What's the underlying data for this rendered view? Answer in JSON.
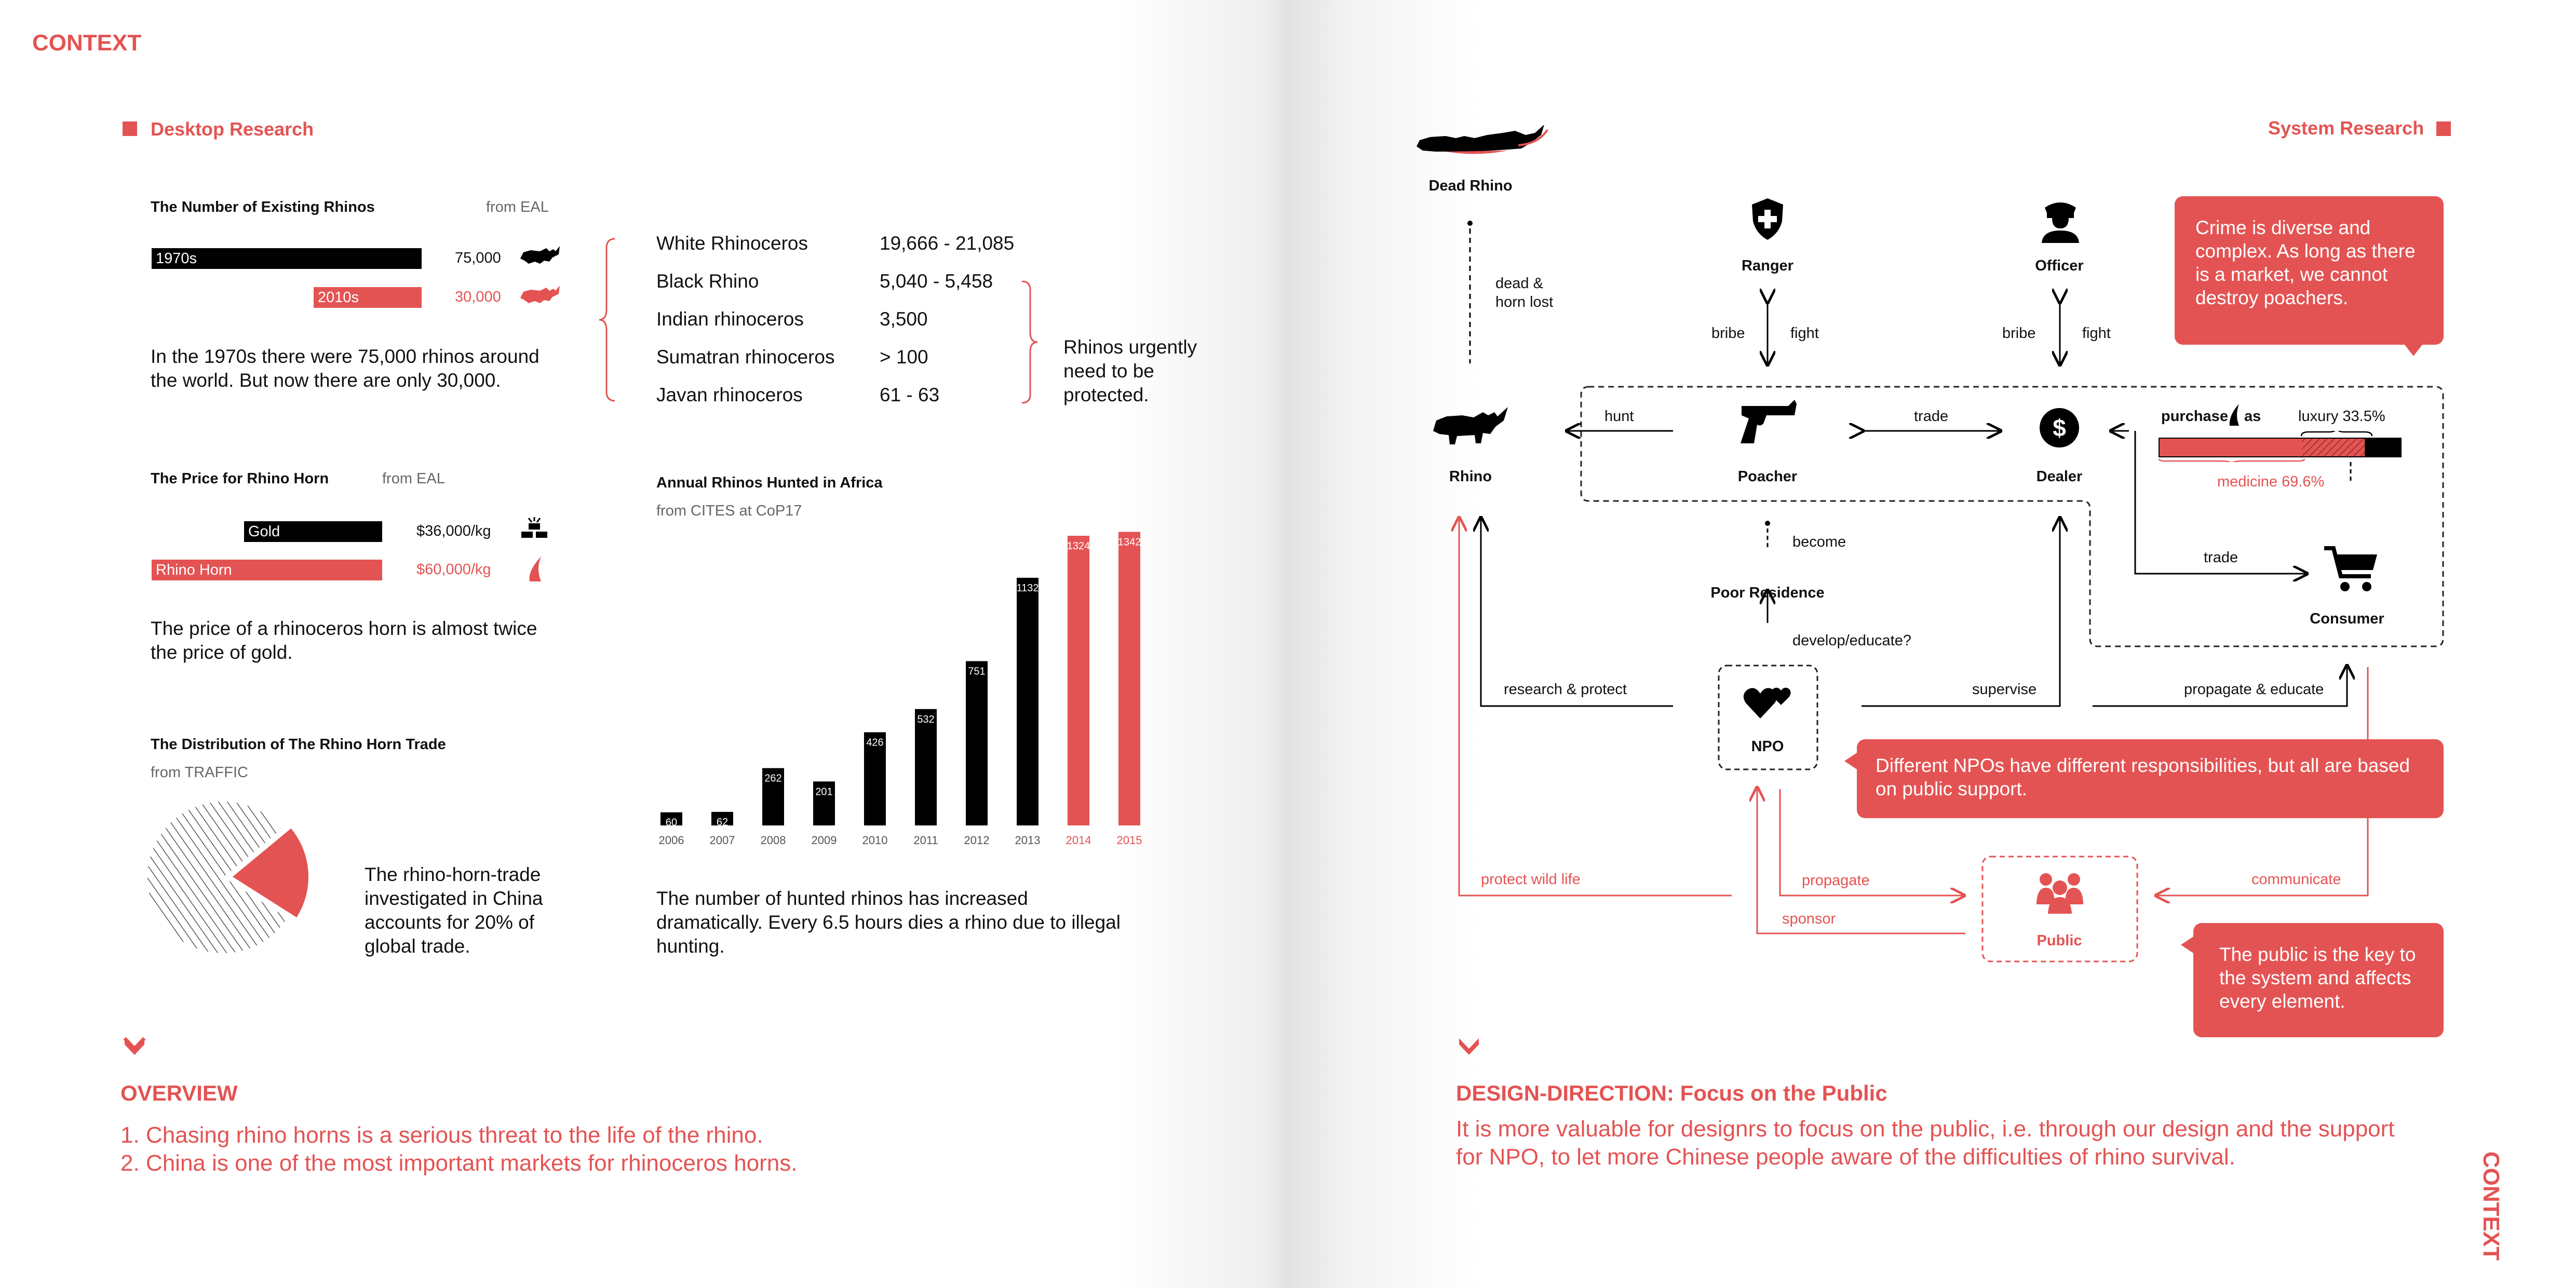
{
  "header": {
    "context_left": "CONTEXT",
    "context_right": "CONTEXT"
  },
  "left": {
    "section_title": "Desktop Research",
    "rhinos": {
      "title": "The Number of Existing Rhinos",
      "source": "from EAL",
      "bars": [
        {
          "label": "1970s",
          "value": "75,000",
          "fraction": 1.0
        },
        {
          "label": "2010s",
          "value": "30,000",
          "fraction": 0.4
        }
      ],
      "text": "In the 1970s there were 75,000 rhinos around the world. But now there are only 30,000."
    },
    "species": {
      "rows": [
        {
          "name": "White Rhinoceros",
          "value": "19,666 - 21,085"
        },
        {
          "name": "Black Rhino",
          "value": "5,040 - 5,458"
        },
        {
          "name": "Indian rhinoceros",
          "value": "3,500"
        },
        {
          "name": "Sumatran rhinoceros",
          "value": "> 100"
        },
        {
          "name": "Javan rhinoceros",
          "value": "61 - 63"
        }
      ],
      "note": "Rhinos urgently need to be protected."
    },
    "price": {
      "title": "The Price for Rhino Horn",
      "source": "from EAL",
      "bars": [
        {
          "label": "Gold",
          "value": "$36,000/kg",
          "fraction": 0.53
        },
        {
          "label": "Rhino Horn",
          "value": "$60,000/kg",
          "fraction": 1.0
        }
      ],
      "text": "The price of a rhinoceros horn is almost twice the price of gold."
    },
    "distribution": {
      "title": "The Distribution of The Rhino Horn Trade",
      "source": "from TRAFFIC",
      "share_percent": 20,
      "text": "The rhino-horn-trade investigated in China accounts for 20% of global trade."
    },
    "overview": {
      "title": "OVERVIEW",
      "lines": [
        "1. Chasing rhino horns is a serious threat to the life of the rhino.",
        "2. China is one of the most important markets for rhinoceros horns."
      ]
    }
  },
  "chart_data": {
    "type": "bar",
    "title": "Annual Rhinos Hunted in Africa",
    "subtitle": "from CITES at CoP17",
    "categories": [
      "2006",
      "2007",
      "2008",
      "2009",
      "2010",
      "2011",
      "2012",
      "2013",
      "2014",
      "2015"
    ],
    "values": [
      60,
      62,
      262,
      201,
      426,
      532,
      751,
      1132,
      1324,
      1342
    ],
    "labels": [
      "60",
      "62",
      "262",
      "201",
      "426",
      "532",
      "751",
      "1132",
      "1324",
      "1342"
    ],
    "highlight": [
      "2014",
      "2015"
    ],
    "colors": {
      "normal": "#000000",
      "highlight": "#e45353"
    },
    "ylim": [
      0,
      1400
    ],
    "caption": "The number of hunted rhinos has increased dramatically. Every 6.5 hours dies a rhino due to illegal hunting."
  },
  "right": {
    "section_title": "System Research",
    "nodes": {
      "dead_rhino": "Dead Rhino",
      "ranger": "Ranger",
      "officer": "Officer",
      "rhino": "Rhino",
      "poacher": "Poacher",
      "dealer": "Dealer",
      "consumer": "Consumer",
      "poor_residence": "Poor Residence",
      "npo": "NPO",
      "public": "Public"
    },
    "edges": {
      "dead_horn_lost": "dead & horn lost",
      "bribe": "bribe",
      "fight": "fight",
      "hunt": "hunt",
      "trade": "trade",
      "become": "become",
      "develop_educate": "develop/educate?",
      "research_protect": "research & protect",
      "supervise": "supervise",
      "propagate_educate": "propagate & educate",
      "protect_wild_life": "protect wild life",
      "propagate": "propagate",
      "sponsor": "sponsor",
      "communicate": "communicate"
    },
    "purchase": {
      "label": "purchase",
      "as": "as",
      "luxury": "luxury 33.5%",
      "medicine": "medicine 69.6%",
      "medicine_fraction": 0.696,
      "luxury_fraction": 0.335
    },
    "callouts": {
      "crime": "Crime is diverse and complex. As long as there is a market, we cannot destroy poachers.",
      "npo": "Different NPOs have different responsibilities, but all are based on public support.",
      "public": "The public is the key to the system and affects every element."
    },
    "direction": {
      "title": "DESIGN-DIRECTION: Focus on the Public",
      "text": "It is more valuable for designrs to focus on the public, i.e. through our design and the support for NPO, to let more Chinese people aware of the difficulties of rhino survival."
    }
  },
  "colors": {
    "accent": "#e45353",
    "dark": "#000000",
    "muted": "#666666"
  }
}
